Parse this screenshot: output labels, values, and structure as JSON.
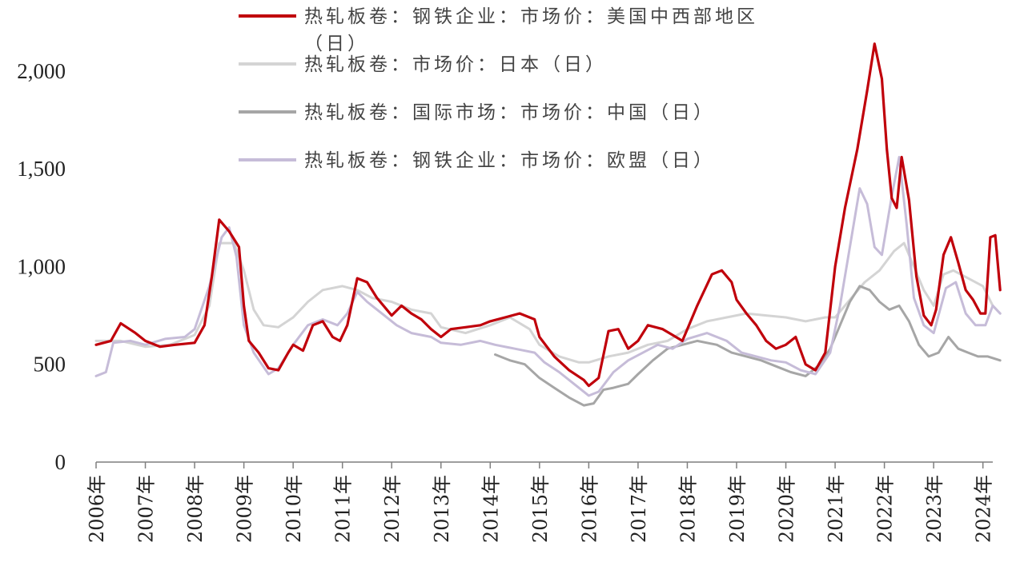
{
  "chart_data": {
    "type": "line",
    "title": "",
    "xlabel": "",
    "ylabel": "",
    "ylim": [
      0,
      2200
    ],
    "yticks": [
      0,
      500,
      1000,
      1500,
      2000
    ],
    "ytick_labels": [
      "0",
      "500",
      "1,000",
      "1,500",
      "2,000"
    ],
    "xlim": [
      2006.0,
      2024.2
    ],
    "xticks": [
      2006,
      2007,
      2008,
      2009,
      2010,
      2011,
      2012,
      2013,
      2014,
      2015,
      2016,
      2017,
      2018,
      2019,
      2020,
      2021,
      2022,
      2023,
      2024
    ],
    "xtick_labels": [
      "2006年",
      "2007年",
      "2008年",
      "2009年",
      "2010年",
      "2011年",
      "2012年",
      "2013年",
      "2014年",
      "2015年",
      "2016年",
      "2017年",
      "2018年",
      "2019年",
      "2020年",
      "2021年",
      "2022年",
      "2023年",
      "2024年"
    ],
    "grid": false,
    "legend_position": "top",
    "series": [
      {
        "name": "热轧板卷：钢铁企业：市场价：美国中西部地区（日）",
        "color": "#c0000b",
        "points": [
          [
            2006.0,
            600
          ],
          [
            2006.3,
            620
          ],
          [
            2006.5,
            710
          ],
          [
            2006.8,
            660
          ],
          [
            2007.0,
            620
          ],
          [
            2007.3,
            590
          ],
          [
            2007.6,
            600
          ],
          [
            2008.0,
            610
          ],
          [
            2008.2,
            700
          ],
          [
            2008.35,
            950
          ],
          [
            2008.5,
            1240
          ],
          [
            2008.7,
            1180
          ],
          [
            2008.9,
            1100
          ],
          [
            2009.0,
            800
          ],
          [
            2009.1,
            620
          ],
          [
            2009.3,
            560
          ],
          [
            2009.5,
            480
          ],
          [
            2009.7,
            470
          ],
          [
            2009.9,
            560
          ],
          [
            2010.0,
            600
          ],
          [
            2010.2,
            570
          ],
          [
            2010.4,
            700
          ],
          [
            2010.6,
            720
          ],
          [
            2010.8,
            640
          ],
          [
            2010.95,
            620
          ],
          [
            2011.1,
            700
          ],
          [
            2011.3,
            940
          ],
          [
            2011.5,
            920
          ],
          [
            2011.7,
            840
          ],
          [
            2011.9,
            780
          ],
          [
            2012.0,
            750
          ],
          [
            2012.2,
            800
          ],
          [
            2012.4,
            760
          ],
          [
            2012.6,
            730
          ],
          [
            2012.8,
            680
          ],
          [
            2013.0,
            640
          ],
          [
            2013.2,
            680
          ],
          [
            2013.5,
            690
          ],
          [
            2013.8,
            700
          ],
          [
            2014.0,
            720
          ],
          [
            2014.3,
            740
          ],
          [
            2014.6,
            760
          ],
          [
            2014.9,
            730
          ],
          [
            2015.0,
            640
          ],
          [
            2015.3,
            540
          ],
          [
            2015.6,
            470
          ],
          [
            2015.9,
            420
          ],
          [
            2016.0,
            390
          ],
          [
            2016.2,
            430
          ],
          [
            2016.4,
            670
          ],
          [
            2016.6,
            680
          ],
          [
            2016.8,
            580
          ],
          [
            2017.0,
            620
          ],
          [
            2017.2,
            700
          ],
          [
            2017.5,
            680
          ],
          [
            2017.7,
            650
          ],
          [
            2017.9,
            620
          ],
          [
            2018.0,
            680
          ],
          [
            2018.2,
            800
          ],
          [
            2018.5,
            960
          ],
          [
            2018.7,
            980
          ],
          [
            2018.9,
            920
          ],
          [
            2019.0,
            830
          ],
          [
            2019.2,
            760
          ],
          [
            2019.4,
            700
          ],
          [
            2019.6,
            620
          ],
          [
            2019.8,
            580
          ],
          [
            2020.0,
            600
          ],
          [
            2020.2,
            640
          ],
          [
            2020.4,
            500
          ],
          [
            2020.6,
            470
          ],
          [
            2020.8,
            560
          ],
          [
            2021.0,
            1000
          ],
          [
            2021.2,
            1300
          ],
          [
            2021.45,
            1600
          ],
          [
            2021.65,
            1900
          ],
          [
            2021.8,
            2140
          ],
          [
            2021.95,
            1960
          ],
          [
            2022.05,
            1600
          ],
          [
            2022.15,
            1350
          ],
          [
            2022.25,
            1300
          ],
          [
            2022.35,
            1560
          ],
          [
            2022.5,
            1340
          ],
          [
            2022.65,
            950
          ],
          [
            2022.8,
            750
          ],
          [
            2022.95,
            700
          ],
          [
            2023.05,
            780
          ],
          [
            2023.2,
            1060
          ],
          [
            2023.35,
            1150
          ],
          [
            2023.5,
            1020
          ],
          [
            2023.65,
            880
          ],
          [
            2023.8,
            830
          ],
          [
            2023.95,
            760
          ],
          [
            2024.05,
            760
          ],
          [
            2024.15,
            1150
          ],
          [
            2024.25,
            1160
          ],
          [
            2024.35,
            880
          ]
        ]
      },
      {
        "name": "热轧板卷：市场价：日本（日）",
        "color": "#d4d4d4",
        "points": [
          [
            2006.0,
            620
          ],
          [
            2006.5,
            620
          ],
          [
            2007.0,
            590
          ],
          [
            2007.5,
            600
          ],
          [
            2008.0,
            650
          ],
          [
            2008.3,
            800
          ],
          [
            2008.5,
            1120
          ],
          [
            2008.8,
            1120
          ],
          [
            2009.0,
            980
          ],
          [
            2009.2,
            780
          ],
          [
            2009.4,
            700
          ],
          [
            2009.7,
            690
          ],
          [
            2010.0,
            740
          ],
          [
            2010.3,
            820
          ],
          [
            2010.6,
            880
          ],
          [
            2011.0,
            900
          ],
          [
            2011.3,
            880
          ],
          [
            2011.6,
            840
          ],
          [
            2012.0,
            820
          ],
          [
            2012.4,
            780
          ],
          [
            2012.8,
            760
          ],
          [
            2013.0,
            690
          ],
          [
            2013.5,
            660
          ],
          [
            2014.0,
            700
          ],
          [
            2014.4,
            740
          ],
          [
            2014.8,
            680
          ],
          [
            2015.0,
            600
          ],
          [
            2015.4,
            540
          ],
          [
            2015.8,
            510
          ],
          [
            2016.0,
            510
          ],
          [
            2016.4,
            540
          ],
          [
            2016.8,
            560
          ],
          [
            2017.2,
            600
          ],
          [
            2017.6,
            620
          ],
          [
            2018.0,
            680
          ],
          [
            2018.4,
            720
          ],
          [
            2018.8,
            740
          ],
          [
            2019.2,
            760
          ],
          [
            2019.6,
            750
          ],
          [
            2020.0,
            740
          ],
          [
            2020.4,
            720
          ],
          [
            2020.8,
            740
          ],
          [
            2021.0,
            740
          ],
          [
            2021.3,
            830
          ],
          [
            2021.6,
            920
          ],
          [
            2021.9,
            980
          ],
          [
            2022.2,
            1080
          ],
          [
            2022.4,
            1120
          ],
          [
            2022.6,
            1000
          ],
          [
            2022.8,
            880
          ],
          [
            2023.0,
            800
          ],
          [
            2023.2,
            960
          ],
          [
            2023.4,
            980
          ],
          [
            2023.7,
            940
          ],
          [
            2024.0,
            900
          ],
          [
            2024.2,
            800
          ],
          [
            2024.35,
            760
          ]
        ]
      },
      {
        "name": "热轧板卷：国际市场：市场价：中国（日）",
        "color": "#a6a6a6",
        "points": [
          [
            2014.1,
            550
          ],
          [
            2014.4,
            520
          ],
          [
            2014.7,
            500
          ],
          [
            2015.0,
            430
          ],
          [
            2015.3,
            380
          ],
          [
            2015.6,
            330
          ],
          [
            2015.9,
            290
          ],
          [
            2016.1,
            300
          ],
          [
            2016.3,
            370
          ],
          [
            2016.5,
            380
          ],
          [
            2016.8,
            400
          ],
          [
            2017.0,
            450
          ],
          [
            2017.3,
            520
          ],
          [
            2017.6,
            580
          ],
          [
            2017.9,
            600
          ],
          [
            2018.2,
            620
          ],
          [
            2018.6,
            600
          ],
          [
            2018.9,
            560
          ],
          [
            2019.2,
            540
          ],
          [
            2019.5,
            520
          ],
          [
            2019.8,
            490
          ],
          [
            2020.1,
            460
          ],
          [
            2020.4,
            440
          ],
          [
            2020.7,
            500
          ],
          [
            2020.9,
            580
          ],
          [
            2021.1,
            700
          ],
          [
            2021.3,
            820
          ],
          [
            2021.5,
            900
          ],
          [
            2021.7,
            880
          ],
          [
            2021.9,
            820
          ],
          [
            2022.1,
            780
          ],
          [
            2022.3,
            800
          ],
          [
            2022.5,
            720
          ],
          [
            2022.7,
            600
          ],
          [
            2022.9,
            540
          ],
          [
            2023.1,
            560
          ],
          [
            2023.3,
            640
          ],
          [
            2023.5,
            580
          ],
          [
            2023.7,
            560
          ],
          [
            2023.9,
            540
          ],
          [
            2024.1,
            540
          ],
          [
            2024.35,
            520
          ]
        ]
      },
      {
        "name": "热轧板卷：钢铁企业：市场价：欧盟（日）",
        "color": "#c6bcd8",
        "points": [
          [
            2006.0,
            440
          ],
          [
            2006.2,
            460
          ],
          [
            2006.35,
            610
          ],
          [
            2006.7,
            620
          ],
          [
            2007.0,
            600
          ],
          [
            2007.4,
            630
          ],
          [
            2007.8,
            640
          ],
          [
            2008.0,
            680
          ],
          [
            2008.3,
            900
          ],
          [
            2008.55,
            1150
          ],
          [
            2008.7,
            1200
          ],
          [
            2008.85,
            1050
          ],
          [
            2009.0,
            700
          ],
          [
            2009.2,
            560
          ],
          [
            2009.5,
            450
          ],
          [
            2009.7,
            480
          ],
          [
            2010.0,
            600
          ],
          [
            2010.3,
            700
          ],
          [
            2010.6,
            730
          ],
          [
            2010.9,
            700
          ],
          [
            2011.1,
            760
          ],
          [
            2011.3,
            870
          ],
          [
            2011.5,
            820
          ],
          [
            2011.8,
            760
          ],
          [
            2012.1,
            700
          ],
          [
            2012.4,
            660
          ],
          [
            2012.8,
            640
          ],
          [
            2013.0,
            610
          ],
          [
            2013.4,
            600
          ],
          [
            2013.8,
            620
          ],
          [
            2014.1,
            600
          ],
          [
            2014.5,
            580
          ],
          [
            2014.9,
            560
          ],
          [
            2015.1,
            510
          ],
          [
            2015.4,
            460
          ],
          [
            2015.7,
            400
          ],
          [
            2016.0,
            340
          ],
          [
            2016.2,
            360
          ],
          [
            2016.5,
            460
          ],
          [
            2016.8,
            520
          ],
          [
            2017.1,
            560
          ],
          [
            2017.4,
            600
          ],
          [
            2017.7,
            580
          ],
          [
            2018.0,
            630
          ],
          [
            2018.4,
            660
          ],
          [
            2018.8,
            620
          ],
          [
            2019.1,
            560
          ],
          [
            2019.4,
            540
          ],
          [
            2019.7,
            520
          ],
          [
            2020.0,
            510
          ],
          [
            2020.3,
            470
          ],
          [
            2020.6,
            450
          ],
          [
            2020.9,
            560
          ],
          [
            2021.1,
            800
          ],
          [
            2021.3,
            1100
          ],
          [
            2021.5,
            1400
          ],
          [
            2021.65,
            1320
          ],
          [
            2021.8,
            1100
          ],
          [
            2021.95,
            1060
          ],
          [
            2022.15,
            1360
          ],
          [
            2022.3,
            1560
          ],
          [
            2022.45,
            1220
          ],
          [
            2022.6,
            840
          ],
          [
            2022.8,
            700
          ],
          [
            2023.0,
            660
          ],
          [
            2023.25,
            890
          ],
          [
            2023.45,
            920
          ],
          [
            2023.65,
            760
          ],
          [
            2023.85,
            700
          ],
          [
            2024.05,
            700
          ],
          [
            2024.2,
            800
          ],
          [
            2024.35,
            760
          ]
        ]
      }
    ]
  }
}
